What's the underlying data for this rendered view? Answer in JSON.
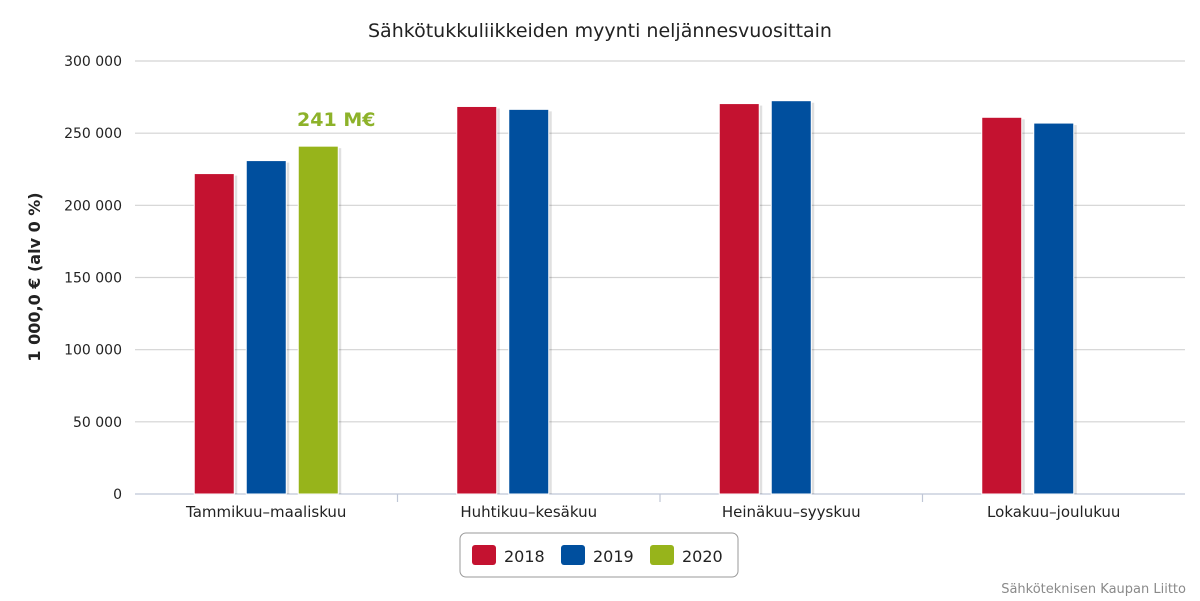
{
  "chart_data": {
    "type": "bar",
    "title": "Sähkötukkuliikkeiden myynti neljännesvuosittain",
    "ylabel": "1 000,0 € (alv 0 %)",
    "xlabel": "",
    "ylim": [
      0,
      300000
    ],
    "yticks": [
      0,
      50000,
      100000,
      150000,
      200000,
      250000,
      300000
    ],
    "ytick_labels": [
      "0",
      "50 000",
      "100 000",
      "150 000",
      "200 000",
      "250 000",
      "300 000"
    ],
    "categories": [
      "Tammikuu–maaliskuu",
      "Huhtikuu–kesäkuu",
      "Heinäkuu–syyskuu",
      "Lokakuu–joulukuu"
    ],
    "series": [
      {
        "name": "2018",
        "color": "#c41230",
        "values": [
          222000,
          268500,
          270500,
          261000
        ]
      },
      {
        "name": "2019",
        "color": "#004f9e",
        "values": [
          231000,
          266500,
          272500,
          257000
        ]
      },
      {
        "name": "2020",
        "color": "#97b41b",
        "values": [
          241000,
          null,
          null,
          null
        ]
      }
    ],
    "annotations": [
      {
        "text": "241 M€",
        "series": "2020",
        "category": "Tammikuu–maaliskuu",
        "color": "#8db22a"
      }
    ],
    "grid": true,
    "legend_position": "bottom-center"
  },
  "credit": "Sähköteknisen Kaupan Liitto"
}
